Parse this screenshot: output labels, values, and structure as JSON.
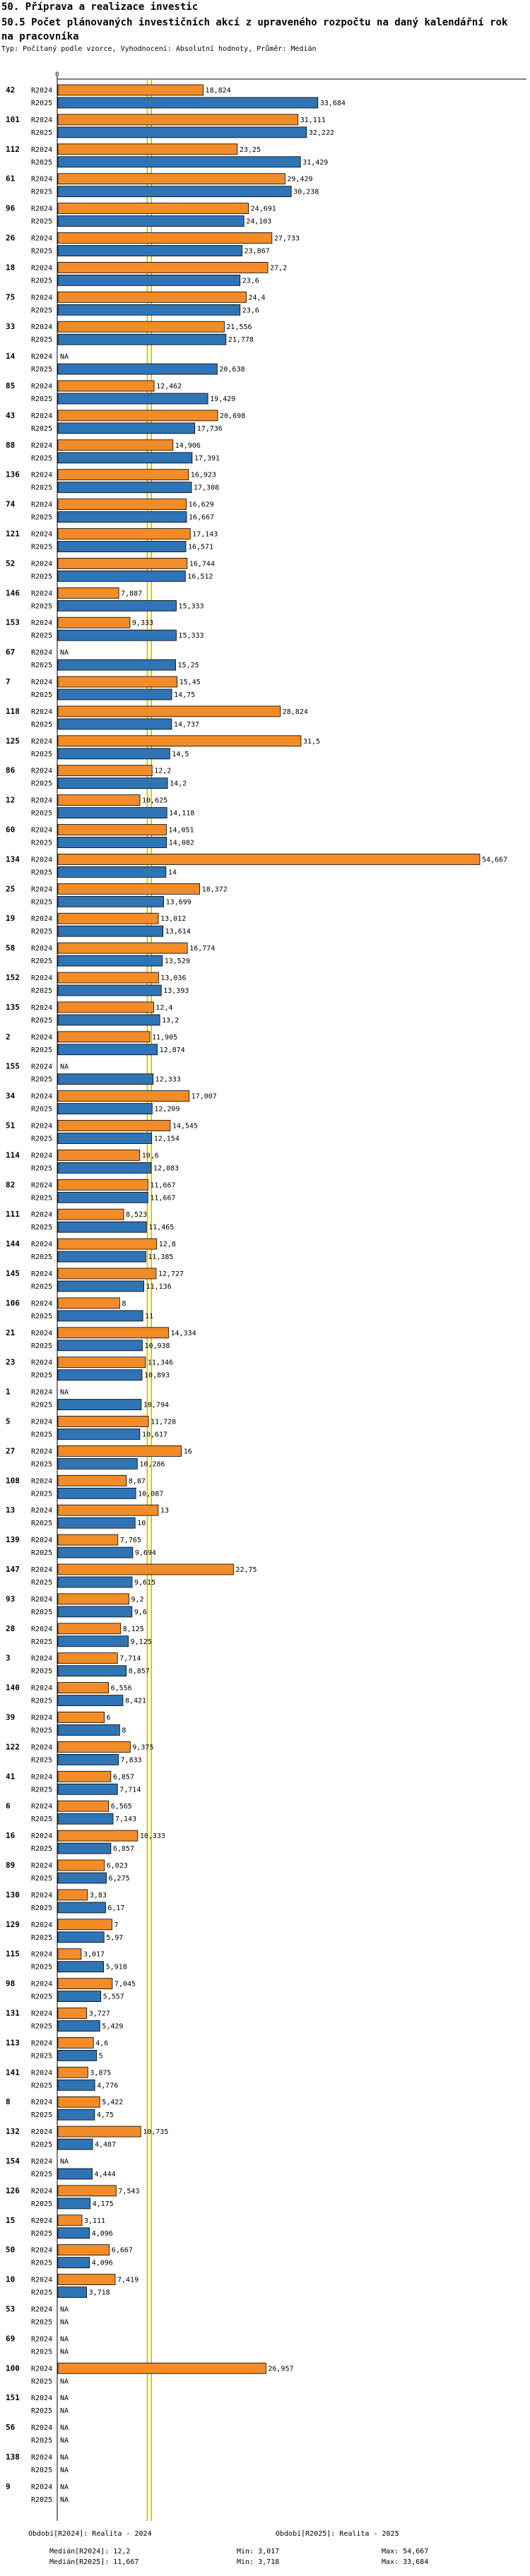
{
  "header": {
    "title": "50. Příprava a realizace investic",
    "subtitle": "50.5 Počet plánovaných investičních akcí z upraveného rozpočtu na daný kalendářní rok na pracovníka",
    "note": "Typ: Počítaný podle vzorce, Vyhodnocení: Absolutní hodnoty, Průměr: Medián"
  },
  "colors": {
    "r2024": "#f28c28",
    "r2025": "#2f74b5",
    "median_line": "#c8b400",
    "axis": "#000000"
  },
  "chart_data": {
    "type": "bar",
    "orientation": "horizontal",
    "axis_zero_label": "0",
    "xlim": [
      0,
      54.667
    ],
    "series_names": [
      "R2024",
      "R2025"
    ],
    "na_label": "NA",
    "groups": [
      {
        "id": "42",
        "r2024": 18.824,
        "r2025": 33.684,
        "l2024": "18,824",
        "l2025": "33,684"
      },
      {
        "id": "101",
        "r2024": 31.111,
        "r2025": 32.222,
        "l2024": "31,111",
        "l2025": "32,222"
      },
      {
        "id": "112",
        "r2024": 23.25,
        "r2025": 31.429,
        "l2024": "23,25",
        "l2025": "31,429"
      },
      {
        "id": "61",
        "r2024": 29.429,
        "r2025": 30.238,
        "l2024": "29,429",
        "l2025": "30,238"
      },
      {
        "id": "96",
        "r2024": 24.691,
        "r2025": 24.103,
        "l2024": "24,691",
        "l2025": "24,103"
      },
      {
        "id": "26",
        "r2024": 27.733,
        "r2025": 23.867,
        "l2024": "27,733",
        "l2025": "23,867"
      },
      {
        "id": "18",
        "r2024": 27.2,
        "r2025": 23.6,
        "l2024": "27,2",
        "l2025": "23,6"
      },
      {
        "id": "75",
        "r2024": 24.4,
        "r2025": 23.6,
        "l2024": "24,4",
        "l2025": "23,6"
      },
      {
        "id": "33",
        "r2024": 21.556,
        "r2025": 21.778,
        "l2024": "21,556",
        "l2025": "21,778"
      },
      {
        "id": "14",
        "r2024": null,
        "r2025": 20.638,
        "l2024": "NA",
        "l2025": "20,638"
      },
      {
        "id": "85",
        "r2024": 12.462,
        "r2025": 19.429,
        "l2024": "12,462",
        "l2025": "19,429"
      },
      {
        "id": "43",
        "r2024": 20.698,
        "r2025": 17.736,
        "l2024": "20,698",
        "l2025": "17,736"
      },
      {
        "id": "88",
        "r2024": 14.906,
        "r2025": 17.391,
        "l2024": "14,906",
        "l2025": "17,391"
      },
      {
        "id": "136",
        "r2024": 16.923,
        "r2025": 17.308,
        "l2024": "16,923",
        "l2025": "17,308"
      },
      {
        "id": "74",
        "r2024": 16.629,
        "r2025": 16.667,
        "l2024": "16,629",
        "l2025": "16,667"
      },
      {
        "id": "121",
        "r2024": 17.143,
        "r2025": 16.571,
        "l2024": "17,143",
        "l2025": "16,571"
      },
      {
        "id": "52",
        "r2024": 16.744,
        "r2025": 16.512,
        "l2024": "16,744",
        "l2025": "16,512"
      },
      {
        "id": "146",
        "r2024": 7.887,
        "r2025": 15.333,
        "l2024": "7,887",
        "l2025": "15,333"
      },
      {
        "id": "153",
        "r2024": 9.333,
        "r2025": 15.333,
        "l2024": "9,333",
        "l2025": "15,333"
      },
      {
        "id": "67",
        "r2024": null,
        "r2025": 15.25,
        "l2024": "NA",
        "l2025": "15,25"
      },
      {
        "id": "7",
        "r2024": 15.45,
        "r2025": 14.75,
        "l2024": "15,45",
        "l2025": "14,75"
      },
      {
        "id": "118",
        "r2024": 28.824,
        "r2025": 14.737,
        "l2024": "28,824",
        "l2025": "14,737"
      },
      {
        "id": "125",
        "r2024": 31.5,
        "r2025": 14.5,
        "l2024": "31,5",
        "l2025": "14,5"
      },
      {
        "id": "86",
        "r2024": 12.2,
        "r2025": 14.2,
        "l2024": "12,2",
        "l2025": "14,2"
      },
      {
        "id": "12",
        "r2024": 10.625,
        "r2025": 14.118,
        "l2024": "10,625",
        "l2025": "14,118"
      },
      {
        "id": "60",
        "r2024": 14.051,
        "r2025": 14.082,
        "l2024": "14,051",
        "l2025": "14,082"
      },
      {
        "id": "134",
        "r2024": 54.667,
        "r2025": 14,
        "l2024": "54,667",
        "l2025": "14"
      },
      {
        "id": "25",
        "r2024": 18.372,
        "r2025": 13.699,
        "l2024": "18,372",
        "l2025": "13,699"
      },
      {
        "id": "19",
        "r2024": 13.012,
        "r2025": 13.614,
        "l2024": "13,012",
        "l2025": "13,614"
      },
      {
        "id": "58",
        "r2024": 16.774,
        "r2025": 13.529,
        "l2024": "16,774",
        "l2025": "13,529"
      },
      {
        "id": "152",
        "r2024": 13.036,
        "r2025": 13.393,
        "l2024": "13,036",
        "l2025": "13,393"
      },
      {
        "id": "135",
        "r2024": 12.4,
        "r2025": 13.2,
        "l2024": "12,4",
        "l2025": "13,2"
      },
      {
        "id": "2",
        "r2024": 11.905,
        "r2025": 12.874,
        "l2024": "11,905",
        "l2025": "12,874"
      },
      {
        "id": "155",
        "r2024": null,
        "r2025": 12.333,
        "l2024": "NA",
        "l2025": "12,333"
      },
      {
        "id": "34",
        "r2024": 17.007,
        "r2025": 12.209,
        "l2024": "17,007",
        "l2025": "12,209"
      },
      {
        "id": "51",
        "r2024": 14.545,
        "r2025": 12.154,
        "l2024": "14,545",
        "l2025": "12,154"
      },
      {
        "id": "114",
        "r2024": 10.6,
        "r2025": 12.083,
        "l2024": "10,6",
        "l2025": "12,083"
      },
      {
        "id": "82",
        "r2024": 11.667,
        "r2025": 11.667,
        "l2024": "11,667",
        "l2025": "11,667"
      },
      {
        "id": "111",
        "r2024": 8.523,
        "r2025": 11.465,
        "l2024": "8,523",
        "l2025": "11,465"
      },
      {
        "id": "144",
        "r2024": 12.8,
        "r2025": 11.385,
        "l2024": "12,8",
        "l2025": "11,385"
      },
      {
        "id": "145",
        "r2024": 12.727,
        "r2025": 11.136,
        "l2024": "12,727",
        "l2025": "11,136"
      },
      {
        "id": "106",
        "r2024": 8,
        "r2025": 11,
        "l2024": "8",
        "l2025": "11"
      },
      {
        "id": "21",
        "r2024": 14.334,
        "r2025": 10.938,
        "l2024": "14,334",
        "l2025": "10,938"
      },
      {
        "id": "23",
        "r2024": 11.346,
        "r2025": 10.893,
        "l2024": "11,346",
        "l2025": "10,893"
      },
      {
        "id": "1",
        "r2024": null,
        "r2025": 10.794,
        "l2024": "NA",
        "l2025": "10,794"
      },
      {
        "id": "5",
        "r2024": 11.728,
        "r2025": 10.617,
        "l2024": "11,728",
        "l2025": "10,617"
      },
      {
        "id": "27",
        "r2024": 16,
        "r2025": 10.286,
        "l2024": "16",
        "l2025": "10,286"
      },
      {
        "id": "108",
        "r2024": 8.87,
        "r2025": 10.087,
        "l2024": "8,87",
        "l2025": "10,087"
      },
      {
        "id": "13",
        "r2024": 13,
        "r2025": 10,
        "l2024": "13",
        "l2025": "10"
      },
      {
        "id": "139",
        "r2024": 7.765,
        "r2025": 9.694,
        "l2024": "7,765",
        "l2025": "9,694"
      },
      {
        "id": "147",
        "r2024": 22.75,
        "r2025": 9.615,
        "l2024": "22,75",
        "l2025": "9,615"
      },
      {
        "id": "93",
        "r2024": 9.2,
        "r2025": 9.6,
        "l2024": "9,2",
        "l2025": "9,6"
      },
      {
        "id": "28",
        "r2024": 8.125,
        "r2025": 9.125,
        "l2024": "8,125",
        "l2025": "9,125"
      },
      {
        "id": "3",
        "r2024": 7.714,
        "r2025": 8.857,
        "l2024": "7,714",
        "l2025": "8,857"
      },
      {
        "id": "140",
        "r2024": 6.556,
        "r2025": 8.421,
        "l2024": "6,556",
        "l2025": "8,421"
      },
      {
        "id": "39",
        "r2024": 6,
        "r2025": 8,
        "l2024": "6",
        "l2025": "8"
      },
      {
        "id": "122",
        "r2024": 9.375,
        "r2025": 7.833,
        "l2024": "9,375",
        "l2025": "7,833"
      },
      {
        "id": "41",
        "r2024": 6.857,
        "r2025": 7.714,
        "l2024": "6,857",
        "l2025": "7,714"
      },
      {
        "id": "6",
        "r2024": 6.565,
        "r2025": 7.143,
        "l2024": "6,565",
        "l2025": "7,143"
      },
      {
        "id": "16",
        "r2024": 10.333,
        "r2025": 6.857,
        "l2024": "10,333",
        "l2025": "6,857"
      },
      {
        "id": "89",
        "r2024": 6.023,
        "r2025": 6.275,
        "l2024": "6,023",
        "l2025": "6,275"
      },
      {
        "id": "130",
        "r2024": 3.83,
        "r2025": 6.17,
        "l2024": "3,83",
        "l2025": "6,17"
      },
      {
        "id": "129",
        "r2024": 7,
        "r2025": 5.97,
        "l2024": "7",
        "l2025": "5,97"
      },
      {
        "id": "115",
        "r2024": 3.017,
        "r2025": 5.918,
        "l2024": "3,017",
        "l2025": "5,918"
      },
      {
        "id": "98",
        "r2024": 7.045,
        "r2025": 5.557,
        "l2024": "7,045",
        "l2025": "5,557"
      },
      {
        "id": "131",
        "r2024": 3.727,
        "r2025": 5.429,
        "l2024": "3,727",
        "l2025": "5,429"
      },
      {
        "id": "113",
        "r2024": 4.6,
        "r2025": 5,
        "l2024": "4,6",
        "l2025": "5"
      },
      {
        "id": "141",
        "r2024": 3.875,
        "r2025": 4.776,
        "l2024": "3,875",
        "l2025": "4,776"
      },
      {
        "id": "8",
        "r2024": 5.422,
        "r2025": 4.75,
        "l2024": "5,422",
        "l2025": "4,75"
      },
      {
        "id": "132",
        "r2024": 10.735,
        "r2025": 4.487,
        "l2024": "10,735",
        "l2025": "4,487"
      },
      {
        "id": "154",
        "r2024": null,
        "r2025": 4.444,
        "l2024": "NA",
        "l2025": "4,444"
      },
      {
        "id": "126",
        "r2024": 7.543,
        "r2025": 4.175,
        "l2024": "7,543",
        "l2025": "4,175"
      },
      {
        "id": "15",
        "r2024": 3.111,
        "r2025": 4.096,
        "l2024": "3,111",
        "l2025": "4,096"
      },
      {
        "id": "50",
        "r2024": 6.667,
        "r2025": 4.096,
        "l2024": "6,667",
        "l2025": "4,096"
      },
      {
        "id": "10",
        "r2024": 7.419,
        "r2025": 3.718,
        "l2024": "7,419",
        "l2025": "3,718"
      },
      {
        "id": "53",
        "r2024": null,
        "r2025": null,
        "l2024": "NA",
        "l2025": "NA"
      },
      {
        "id": "69",
        "r2024": null,
        "r2025": null,
        "l2024": "NA",
        "l2025": "NA"
      },
      {
        "id": "100",
        "r2024": 26.957,
        "r2025": null,
        "l2024": "26,957",
        "l2025": "NA"
      },
      {
        "id": "151",
        "r2024": null,
        "r2025": null,
        "l2024": "NA",
        "l2025": "NA"
      },
      {
        "id": "56",
        "r2024": null,
        "r2025": null,
        "l2024": "NA",
        "l2025": "NA"
      },
      {
        "id": "138",
        "r2024": null,
        "r2025": null,
        "l2024": "NA",
        "l2025": "NA"
      },
      {
        "id": "9",
        "r2024": null,
        "r2025": null,
        "l2024": "NA",
        "l2025": "NA"
      }
    ],
    "medians": {
      "r2024": 12.2,
      "r2025": 11.667
    }
  },
  "footer": {
    "legend_2024": "Období[R2024]: Realita - 2024",
    "legend_2025": "Období[R2025]: Realita - 2025",
    "median_2024": "Medián[R2024]: 12,2",
    "median_2025": "Medián[R2025]: 11,667",
    "min_2024": "Min: 3,017",
    "min_2025": "Min: 3,718",
    "max_2024": "Max: 54,667",
    "max_2025": "Max: 33,684"
  }
}
